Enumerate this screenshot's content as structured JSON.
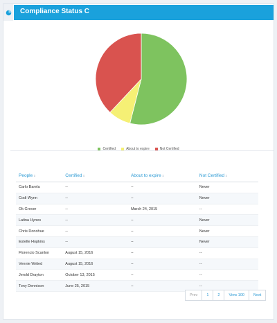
{
  "header": {
    "title": "Compliance Status C",
    "icon": "pie-chart-icon"
  },
  "chart_data": {
    "type": "pie",
    "series": [
      {
        "name": "Certified",
        "value": 54,
        "color": "#7ec35f"
      },
      {
        "name": "About to expire",
        "value": 8,
        "color": "#f5f075"
      },
      {
        "name": "Not Certified",
        "value": 38,
        "color": "#d9534f"
      }
    ]
  },
  "table": {
    "columns": [
      "People",
      "Certified",
      "About to expire",
      "Not Certified"
    ],
    "rows": [
      [
        "Carlo Barela",
        "--",
        "--",
        "Never"
      ],
      [
        "Codi Wynn",
        "--",
        "--",
        "Never"
      ],
      [
        "Ok Grover",
        "--",
        "March 24, 2015",
        "--"
      ],
      [
        "Latina Hynes",
        "--",
        "--",
        "Never"
      ],
      [
        "Chris Donohue",
        "--",
        "--",
        "Never"
      ],
      [
        "Estelle Hopkins",
        "--",
        "--",
        "Never"
      ],
      [
        "Florencio Scanlon",
        "August 15, 2016",
        "--",
        "--"
      ],
      [
        "Vennie Writed",
        "August 15, 2016",
        "--",
        "--"
      ],
      [
        "Jerold Drayton",
        "October 13, 2015",
        "--",
        "--"
      ],
      [
        "Tony Dennison",
        "June 25, 2015",
        "--",
        "--"
      ]
    ]
  },
  "pagination": {
    "prev": "Prev",
    "pages": [
      "1",
      "2"
    ],
    "view_all": "View 100",
    "next": "Next"
  }
}
